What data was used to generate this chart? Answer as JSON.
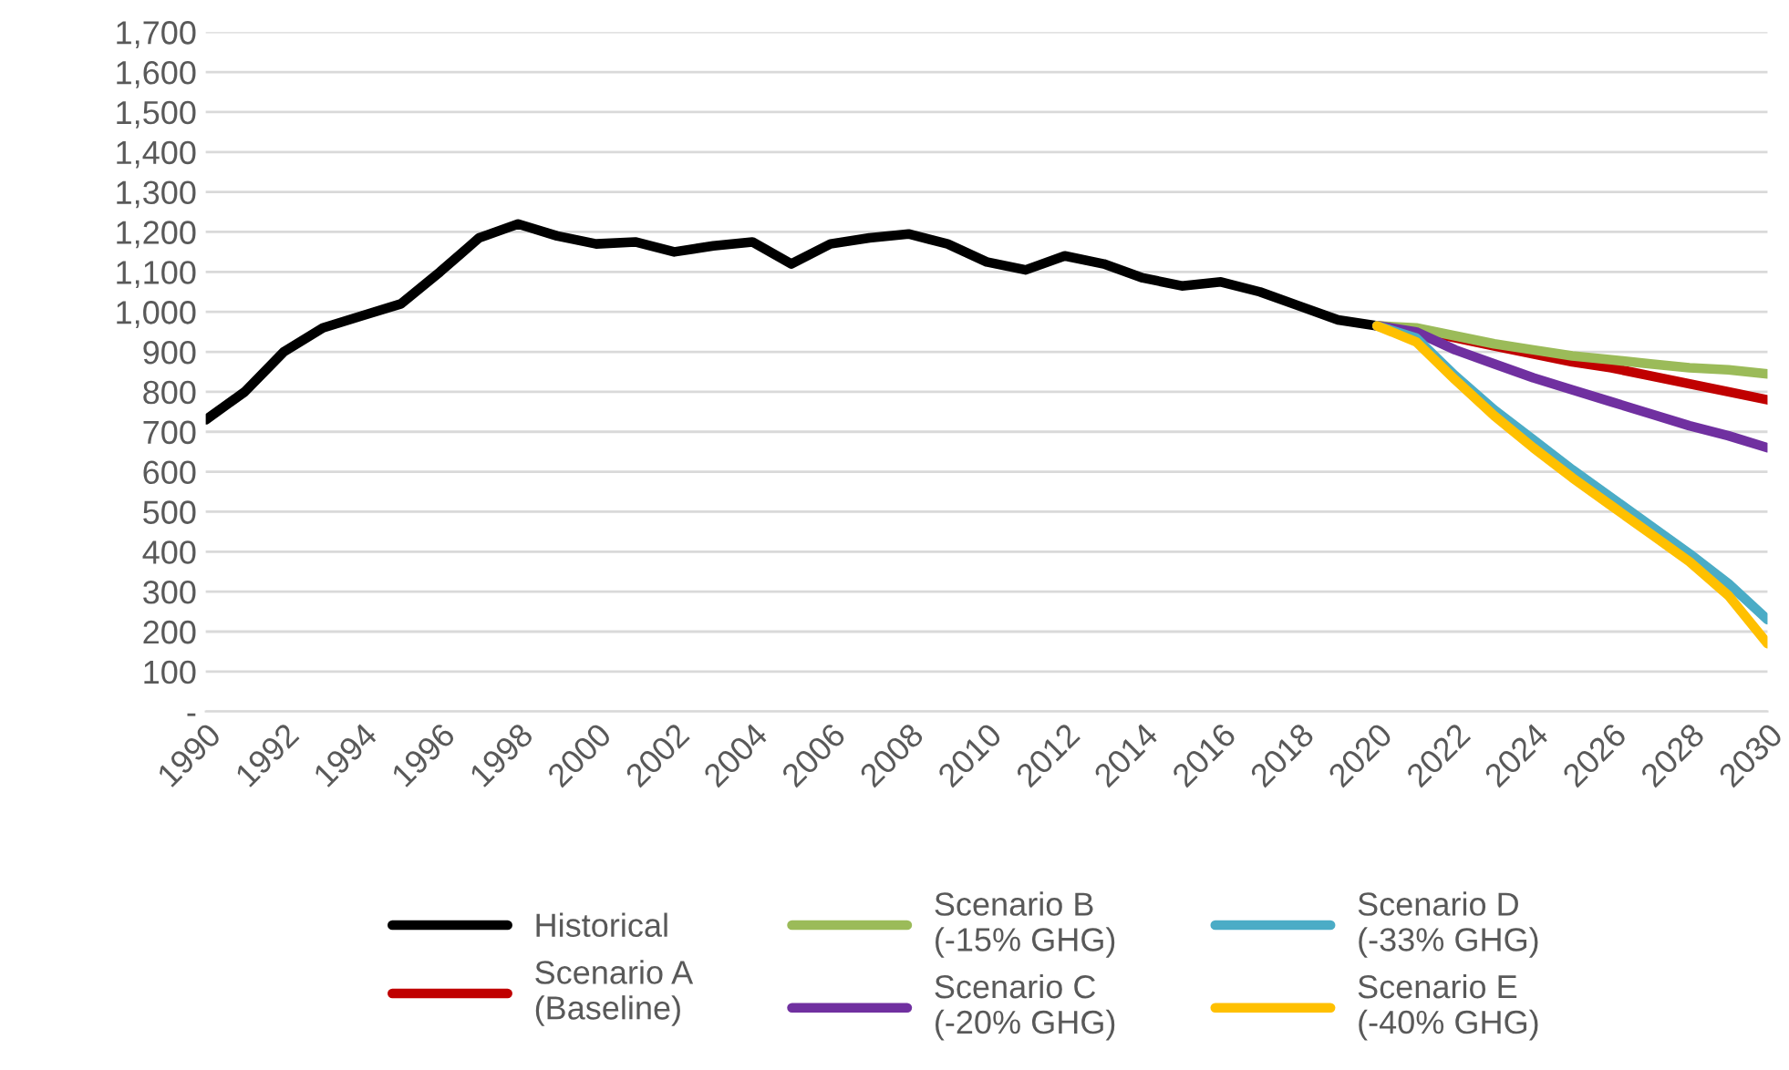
{
  "chart_data": {
    "type": "line",
    "xlim": [
      1990,
      2030
    ],
    "xticks": [
      1990,
      1992,
      1994,
      1996,
      1998,
      2000,
      2002,
      2004,
      2006,
      2008,
      2010,
      2012,
      2014,
      2016,
      2018,
      2020,
      2022,
      2024,
      2026,
      2028,
      2030
    ],
    "ylim": [
      0,
      1700
    ],
    "yticks": [
      {
        "value": 0,
        "label": "-"
      },
      100,
      200,
      300,
      400,
      500,
      600,
      700,
      800,
      900,
      {
        "value": 1000,
        "label": "1,000"
      },
      {
        "value": 1100,
        "label": "1,100"
      },
      {
        "value": 1200,
        "label": "1,200"
      },
      {
        "value": 1300,
        "label": "1,300"
      },
      {
        "value": 1400,
        "label": "1,400"
      },
      {
        "value": 1500,
        "label": "1,500"
      },
      {
        "value": 1600,
        "label": "1,600"
      },
      {
        "value": 1700,
        "label": "1,700"
      }
    ],
    "grid": "y",
    "legend": "bottom",
    "marker": "none",
    "line_style": "solid",
    "series": [
      {
        "name": "Historical",
        "color": "#000000",
        "x": [
          1990,
          1991,
          1992,
          1993,
          1994,
          1995,
          1996,
          1997,
          1998,
          1999,
          2000,
          2001,
          2002,
          2003,
          2004,
          2005,
          2006,
          2007,
          2008,
          2009,
          2010,
          2011,
          2012,
          2013,
          2014,
          2015,
          2016,
          2017,
          2018,
          2019,
          2020
        ],
        "values": [
          730,
          800,
          900,
          960,
          990,
          1020,
          1100,
          1185,
          1220,
          1190,
          1170,
          1175,
          1150,
          1165,
          1175,
          1120,
          1170,
          1185,
          1195,
          1170,
          1125,
          1105,
          1140,
          1120,
          1085,
          1065,
          1075,
          1050,
          1015,
          980,
          965
        ]
      },
      {
        "name": "Scenario A\n(Baseline)",
        "color": "#c00000",
        "x": [
          2020,
          2021,
          2022,
          2023,
          2024,
          2025,
          2026,
          2027,
          2028,
          2029,
          2030
        ],
        "values": [
          965,
          955,
          935,
          915,
          895,
          875,
          860,
          840,
          820,
          800,
          780
        ]
      },
      {
        "name": "Scenario B\n(-15% GHG)",
        "color": "#9bbb59",
        "x": [
          2020,
          2021,
          2022,
          2023,
          2024,
          2025,
          2026,
          2027,
          2028,
          2029,
          2030
        ],
        "values": [
          965,
          960,
          940,
          920,
          905,
          890,
          880,
          870,
          860,
          855,
          845
        ]
      },
      {
        "name": "Scenario C\n(-20% GHG)",
        "color": "#7030a0",
        "x": [
          2020,
          2021,
          2022,
          2023,
          2024,
          2025,
          2026,
          2027,
          2028,
          2029,
          2030
        ],
        "values": [
          965,
          950,
          905,
          870,
          835,
          805,
          775,
          745,
          715,
          690,
          660
        ]
      },
      {
        "name": "Scenario D\n(-33% GHG)",
        "color": "#4bacc6",
        "x": [
          2020,
          2021,
          2022,
          2023,
          2024,
          2025,
          2026,
          2027,
          2028,
          2029,
          2030
        ],
        "values": [
          965,
          935,
          840,
          755,
          680,
          605,
          535,
          465,
          395,
          320,
          230
        ]
      },
      {
        "name": "Scenario E\n(-40% GHG)",
        "color": "#ffc000",
        "x": [
          2020,
          2021,
          2022,
          2023,
          2024,
          2025,
          2026,
          2027,
          2028,
          2029,
          2030
        ],
        "values": [
          965,
          925,
          830,
          740,
          660,
          585,
          515,
          445,
          375,
          290,
          170
        ]
      }
    ]
  }
}
